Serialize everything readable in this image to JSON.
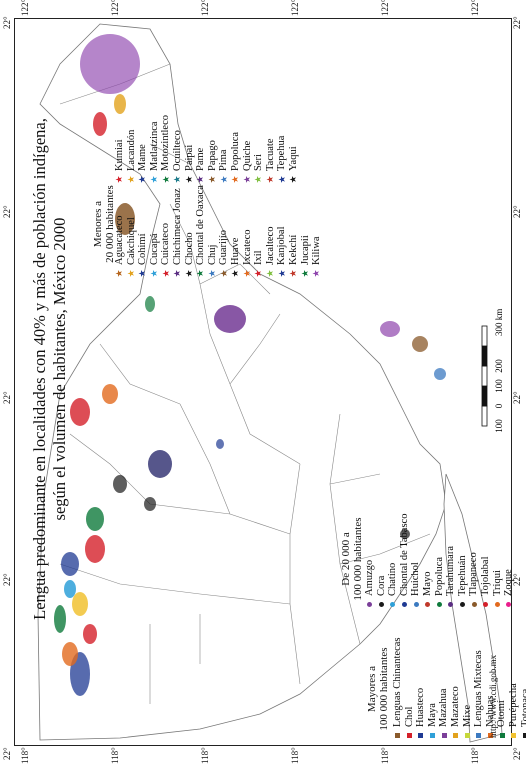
{
  "title_line1": "Lengua predominante en localidades con 40% y más de población indígena,",
  "title_line2": "según el volumen de habitantes, México 2000",
  "coords": {
    "top": [
      "22°",
      "22°",
      "22°",
      "22°",
      "22°"
    ],
    "bottom": [
      "22°",
      "22°",
      "22°",
      "22°",
      "22°"
    ],
    "left": [
      "118°",
      "118°",
      "118°",
      "118°",
      "118°",
      "118°"
    ],
    "right": [
      "122°",
      "122°",
      "122°",
      "122°",
      "122°",
      "122°"
    ]
  },
  "scale": {
    "labels": [
      "100",
      "0",
      "100",
      "200",
      "300 km"
    ]
  },
  "source_url": "http://www.cdi.gob.mx",
  "legend": {
    "groups": [
      {
        "heading": [
          "Mayores a",
          "100 000 habitantes"
        ],
        "marker": "square",
        "items": [
          {
            "label": "Lenguas Chinantecas",
            "color": "#8a5a2b"
          },
          {
            "label": "Chol",
            "color": "#d4202a"
          },
          {
            "label": "Huasteco",
            "color": "#1f3a93"
          },
          {
            "label": "Maya",
            "color": "#2fa0d8"
          },
          {
            "label": "Mazahua",
            "color": "#7b3f99"
          },
          {
            "label": "Mazateco",
            "color": "#e2a21d"
          },
          {
            "label": "Mixe",
            "color": "#c6d83b"
          },
          {
            "label": "Lenguas Mixtecas",
            "color": "#3c7ac0"
          },
          {
            "label": "Nahuas",
            "color": "#e26a1e"
          },
          {
            "label": "Otomí",
            "color": "#0f7a3c"
          },
          {
            "label": "Purépecha",
            "color": "#f1c232"
          },
          {
            "label": "Totonaca",
            "color": "#1a1a1a"
          },
          {
            "label": "Tzeltal",
            "color": "#e91e8c"
          },
          {
            "label": "Tzotzil",
            "color": "#7fbf3f"
          },
          {
            "label": "Lenguas Zapotecas",
            "color": "#8e44ad"
          }
        ]
      },
      {
        "heading": [
          "De 20 000 a",
          "100 000 habitantes"
        ],
        "marker": "dot",
        "items": [
          {
            "label": "Amuzgo",
            "color": "#7b3f99"
          },
          {
            "label": "Cora",
            "color": "#1a1a1a"
          },
          {
            "label": "Chatino",
            "color": "#2fa0d8"
          },
          {
            "label": "Chontal de Tabasco",
            "color": "#1f3a93"
          },
          {
            "label": "Huichol",
            "color": "#3c7ac0"
          },
          {
            "label": "Mayo",
            "color": "#c0392b"
          },
          {
            "label": "Popoluca",
            "color": "#0f7a3c"
          },
          {
            "label": "Tarahumara",
            "color": "#5a2d82"
          },
          {
            "label": "Tepehuán",
            "color": "#1a1a1a"
          },
          {
            "label": "Tlapaneco",
            "color": "#8a5a2b"
          },
          {
            "label": "Tojolabal",
            "color": "#d4202a"
          },
          {
            "label": "Triqui",
            "color": "#e26a1e"
          },
          {
            "label": "Zoque",
            "color": "#e91e8c"
          }
        ]
      },
      {
        "heading": [
          "Menores a",
          "20 000 habitantes"
        ],
        "marker": "star",
        "items": [
          {
            "label": "Aguacateco",
            "color": "#b5651d"
          },
          {
            "label": "Cakchiquel",
            "color": "#e2a21d"
          },
          {
            "label": "Cohimí",
            "color": "#1f3a93"
          },
          {
            "label": "Cucapá",
            "color": "#2fa0d8"
          },
          {
            "label": "Cuicateco",
            "color": "#d4202a"
          },
          {
            "label": "Chichimeca Jonaz",
            "color": "#5a2d82"
          },
          {
            "label": "Chocho",
            "color": "#1a1a1a"
          },
          {
            "label": "Chontal de Oaxaca",
            "color": "#0f7a3c"
          },
          {
            "label": "Chuj",
            "color": "#3c7ac0"
          },
          {
            "label": "Guarijío",
            "color": "#8a5a2b"
          },
          {
            "label": "Huave",
            "color": "#1a1a1a"
          },
          {
            "label": "Ixcateco",
            "color": "#e26a1e"
          },
          {
            "label": "Ixil",
            "color": "#d4202a"
          },
          {
            "label": "Jacalteco",
            "color": "#7fbf3f"
          },
          {
            "label": "Kanjobal",
            "color": "#1f3a93"
          },
          {
            "label": "Kekchí",
            "color": "#c0392b"
          },
          {
            "label": "Jucapii",
            "color": "#0f7a3c"
          },
          {
            "label": "Kiliwa",
            "color": "#8e44ad"
          }
        ]
      },
      {
        "heading": [],
        "marker": "star",
        "items": [
          {
            "label": "Kumiai",
            "color": "#d4202a"
          },
          {
            "label": "Lacandón",
            "color": "#e2a21d"
          },
          {
            "label": "Mame",
            "color": "#1f3a93"
          },
          {
            "label": "Matlatzinca",
            "color": "#2fa0d8"
          },
          {
            "label": "Motozintleco",
            "color": "#0f7a3c"
          },
          {
            "label": "Ocuilteco",
            "color": "#1a7a8a"
          },
          {
            "label": "Paipai",
            "color": "#1a1a1a"
          },
          {
            "label": "Pame",
            "color": "#5a2d82"
          },
          {
            "label": "Papago",
            "color": "#8a5a2b"
          },
          {
            "label": "Pima",
            "color": "#3c7ac0"
          },
          {
            "label": "Popoluca",
            "color": "#e26a1e"
          },
          {
            "label": "Quiche",
            "color": "#7b3f99"
          },
          {
            "label": "Seri",
            "color": "#7fbf3f"
          },
          {
            "label": "Tacuate",
            "color": "#c0392b"
          },
          {
            "label": "Tepehua",
            "color": "#1f3a93"
          },
          {
            "label": "Yaqui",
            "color": "#1a1a1a"
          }
        ]
      }
    ]
  }
}
